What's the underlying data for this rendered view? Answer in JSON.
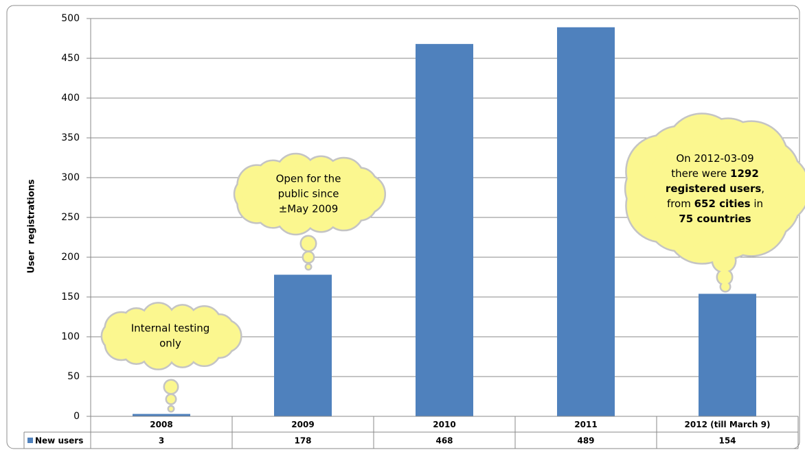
{
  "chart_data": {
    "type": "bar",
    "y_label": "User  registrations",
    "categories": [
      "2008",
      "2009",
      "2010",
      "2011",
      "2012 (till March 9)"
    ],
    "series": [
      {
        "name": "New users",
        "color": "#4f81bd",
        "values": [
          3,
          178,
          468,
          489,
          154
        ]
      }
    ],
    "ylim": [
      0,
      500
    ],
    "yticks": [
      0,
      50,
      100,
      150,
      200,
      250,
      300,
      350,
      400,
      450,
      500
    ],
    "grid": true,
    "data_table": true,
    "annotations": [
      {
        "lines": [
          "Internal testing",
          "only"
        ]
      },
      {
        "lines": [
          "Open for the",
          "public since",
          "±May 2009"
        ]
      },
      {
        "lines": [
          [
            {
              "text": "On 2012-03-09",
              "bold": false
            }
          ],
          [
            {
              "text": "there were ",
              "bold": false
            },
            {
              "text": "1292",
              "bold": true
            }
          ],
          [
            {
              "text": "registered users",
              "bold": true
            },
            {
              "text": ",",
              "bold": false
            }
          ],
          [
            {
              "text": "from ",
              "bold": false
            },
            {
              "text": "652 cities",
              "bold": true
            },
            {
              "text": " in",
              "bold": false
            }
          ],
          [
            {
              "text": "75 countries",
              "bold": true
            }
          ]
        ]
      }
    ]
  }
}
